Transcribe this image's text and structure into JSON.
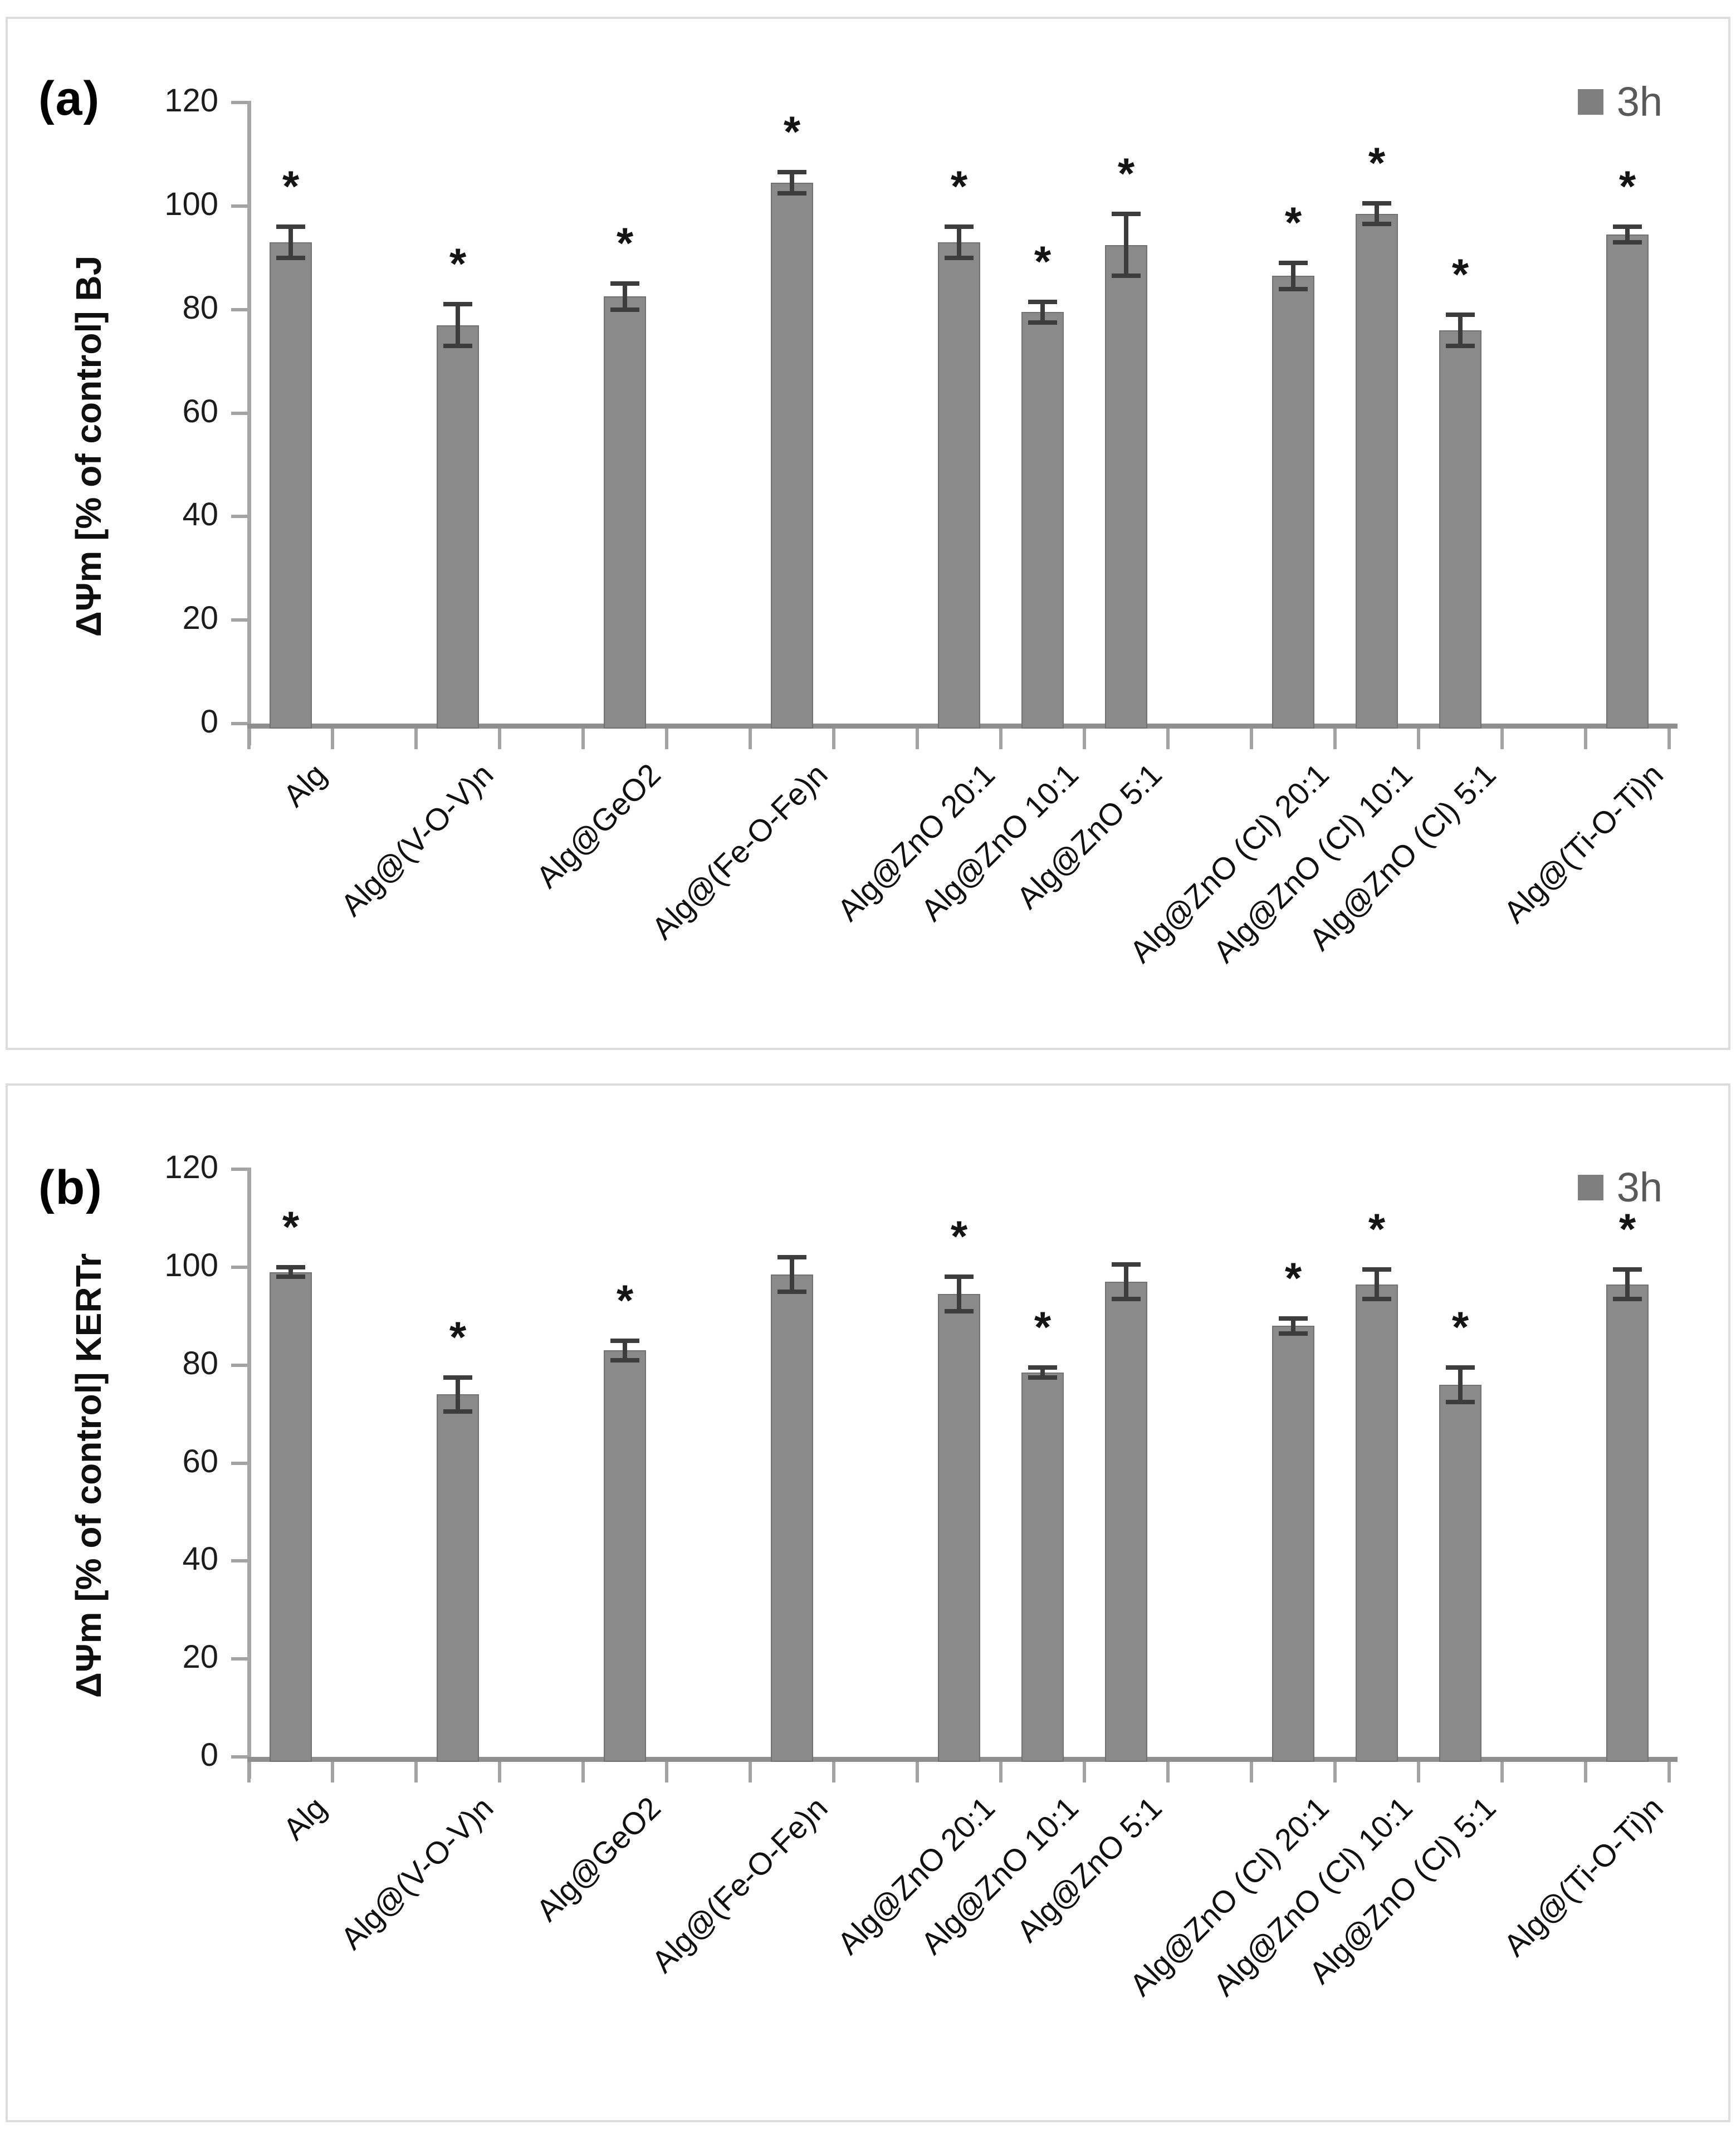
{
  "figure": {
    "panels": [
      {
        "letter": "(a)",
        "cell_line": "BJ"
      },
      {
        "letter": "(b)",
        "cell_line": "KERTr"
      }
    ]
  },
  "ui": {
    "asterisk": "*"
  },
  "chart_data": [
    {
      "type": "bar",
      "panel": "(a)",
      "ylabel": "ΔΨm  [% of control] BJ",
      "xlabel": "",
      "ylim": [
        0,
        120
      ],
      "yticks": [
        0,
        20,
        40,
        60,
        80,
        100,
        120
      ],
      "grid": false,
      "legend": {
        "label": "3h",
        "position": "top-right",
        "swatch_color": "#7f7f7f"
      },
      "bar_color": "#8a8a8a",
      "error_bar_color": "#3d3d3d",
      "categories": [
        "Alg",
        "Alg@(V-O-V)n",
        "Alg@GeO2",
        "Alg@(Fe-O-Fe)n",
        "Alg@ZnO 20:1",
        "Alg@ZnO 10:1",
        "Alg@ZnO 5:1",
        "Alg@ZnO (Cl)  20:1",
        "Alg@ZnO (Cl) 10:1",
        "Alg@ZnO (Cl) 5:1",
        "Alg@(Ti-O-Ti)n"
      ],
      "series": [
        {
          "name": "3h",
          "values": [
            93,
            77,
            82.5,
            104.5,
            93,
            79.5,
            92.5,
            86.5,
            98.5,
            76,
            94.5
          ],
          "errors": [
            3,
            4,
            2.5,
            2,
            3,
            2,
            6,
            2.5,
            2,
            3,
            1.5
          ],
          "significant": [
            true,
            true,
            true,
            true,
            true,
            true,
            true,
            true,
            true,
            true,
            true
          ]
        }
      ]
    },
    {
      "type": "bar",
      "panel": "(b)",
      "ylabel": "ΔΨm  [% of control] KERTr",
      "xlabel": "",
      "ylim": [
        0,
        120
      ],
      "yticks": [
        0,
        20,
        40,
        60,
        80,
        100,
        120
      ],
      "grid": false,
      "legend": {
        "label": "3h",
        "position": "top-right",
        "swatch_color": "#7f7f7f"
      },
      "bar_color": "#8a8a8a",
      "error_bar_color": "#3d3d3d",
      "categories": [
        "Alg",
        "Alg@(V-O-V)n",
        "Alg@GeO2",
        "Alg@(Fe-O-Fe)n",
        "Alg@ZnO 20:1",
        "Alg@ZnO 10:1",
        "Alg@ZnO 5:1",
        "Alg@ZnO (Cl)  20:1",
        "Alg@ZnO (Cl) 10:1",
        "Alg@ZnO (Cl) 5:1",
        "Alg@(Ti-O-Ti)n"
      ],
      "series": [
        {
          "name": "3h",
          "values": [
            99,
            74,
            83,
            98.5,
            94.5,
            78.5,
            97,
            88,
            96.5,
            76,
            96.5
          ],
          "errors": [
            1,
            3.5,
            2,
            3.5,
            3.5,
            1,
            3.5,
            1.5,
            3,
            3.5,
            3
          ],
          "significant": [
            true,
            true,
            true,
            false,
            true,
            true,
            false,
            true,
            true,
            true,
            true
          ]
        }
      ]
    }
  ]
}
